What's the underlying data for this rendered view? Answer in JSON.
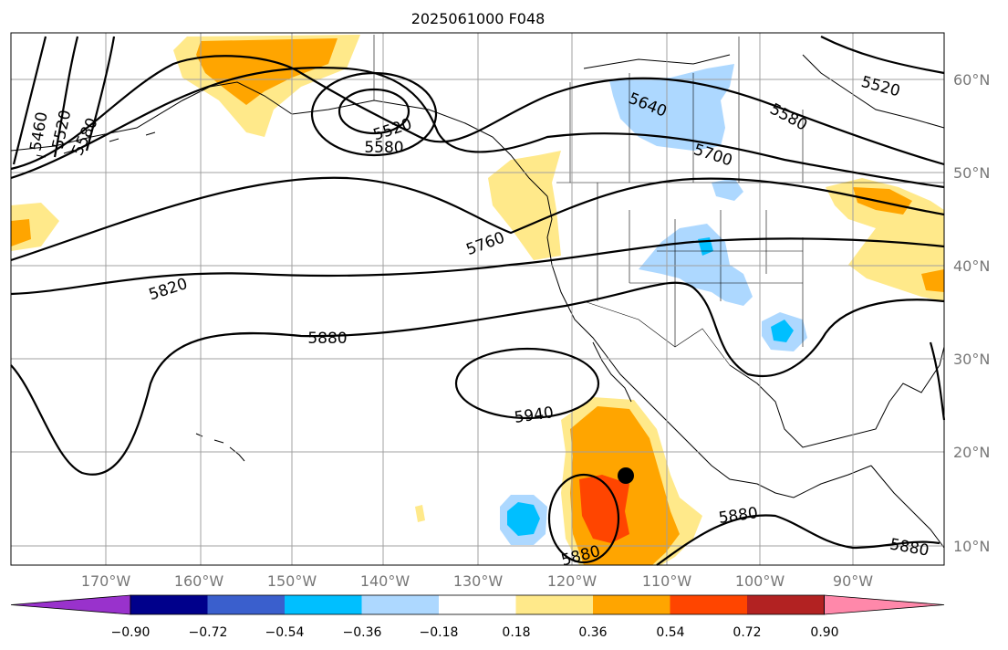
{
  "title": "2025061000 F048",
  "lat_labels": [
    "60°N",
    "50°N",
    "40°N",
    "30°N",
    "20°N",
    "10°N"
  ],
  "lon_labels": [
    "170°W",
    "160°W",
    "150°W",
    "140°W",
    "130°W",
    "120°W",
    "110°W",
    "100°W",
    "90°W"
  ],
  "contour_labels": [
    "5460",
    "5520",
    "5580",
    "5520",
    "5580",
    "5640",
    "5700",
    "5520",
    "5580",
    "5760",
    "5820",
    "5880",
    "5940",
    "5880",
    "5880",
    "5880"
  ],
  "colorbar": {
    "tick_labels": [
      "−0.90",
      "−0.72",
      "−0.54",
      "−0.36",
      "−0.18",
      "0.18",
      "0.36",
      "0.54",
      "0.72",
      "0.90"
    ],
    "colors": [
      "#9932cc",
      "#00008b",
      "#3a5fcd",
      "#00bfff",
      "#add8ff",
      "#ffffff",
      "#ffe98a",
      "#ffa500",
      "#ff4500",
      "#b22222",
      "#ff88aa"
    ]
  },
  "colors": {
    "pos_light": "#ffe98a",
    "pos_mid": "#ffa500",
    "pos_strong": "#ff4500",
    "neg_light": "#add8ff",
    "neg_mid": "#00bfff",
    "grid": "#a0a0a0",
    "contour": "#000000"
  }
}
